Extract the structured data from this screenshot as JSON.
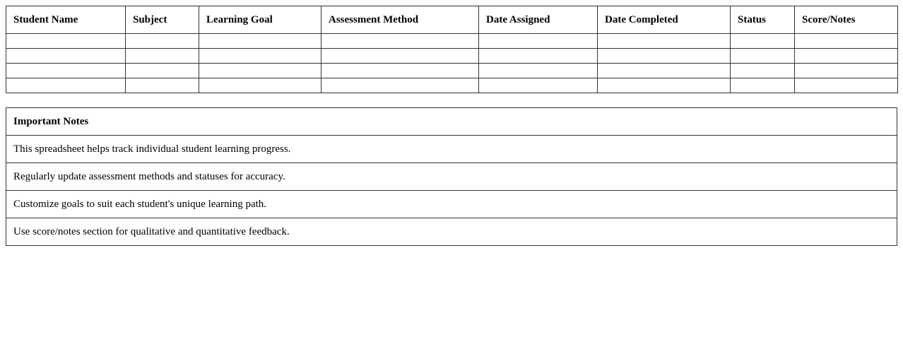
{
  "tracker": {
    "headers": [
      "Student Name",
      "Subject",
      "Learning Goal",
      "Assessment Method",
      "Date Assigned",
      "Date Completed",
      "Status",
      "Score/Notes"
    ],
    "empty_rows": 4
  },
  "notes": {
    "title": "Important Notes",
    "items": [
      "This spreadsheet helps track individual student learning progress.",
      "Regularly update assessment methods and statuses for accuracy.",
      "Customize goals to suit each student's unique learning path.",
      "Use score/notes section for qualitative and quantitative feedback."
    ]
  }
}
